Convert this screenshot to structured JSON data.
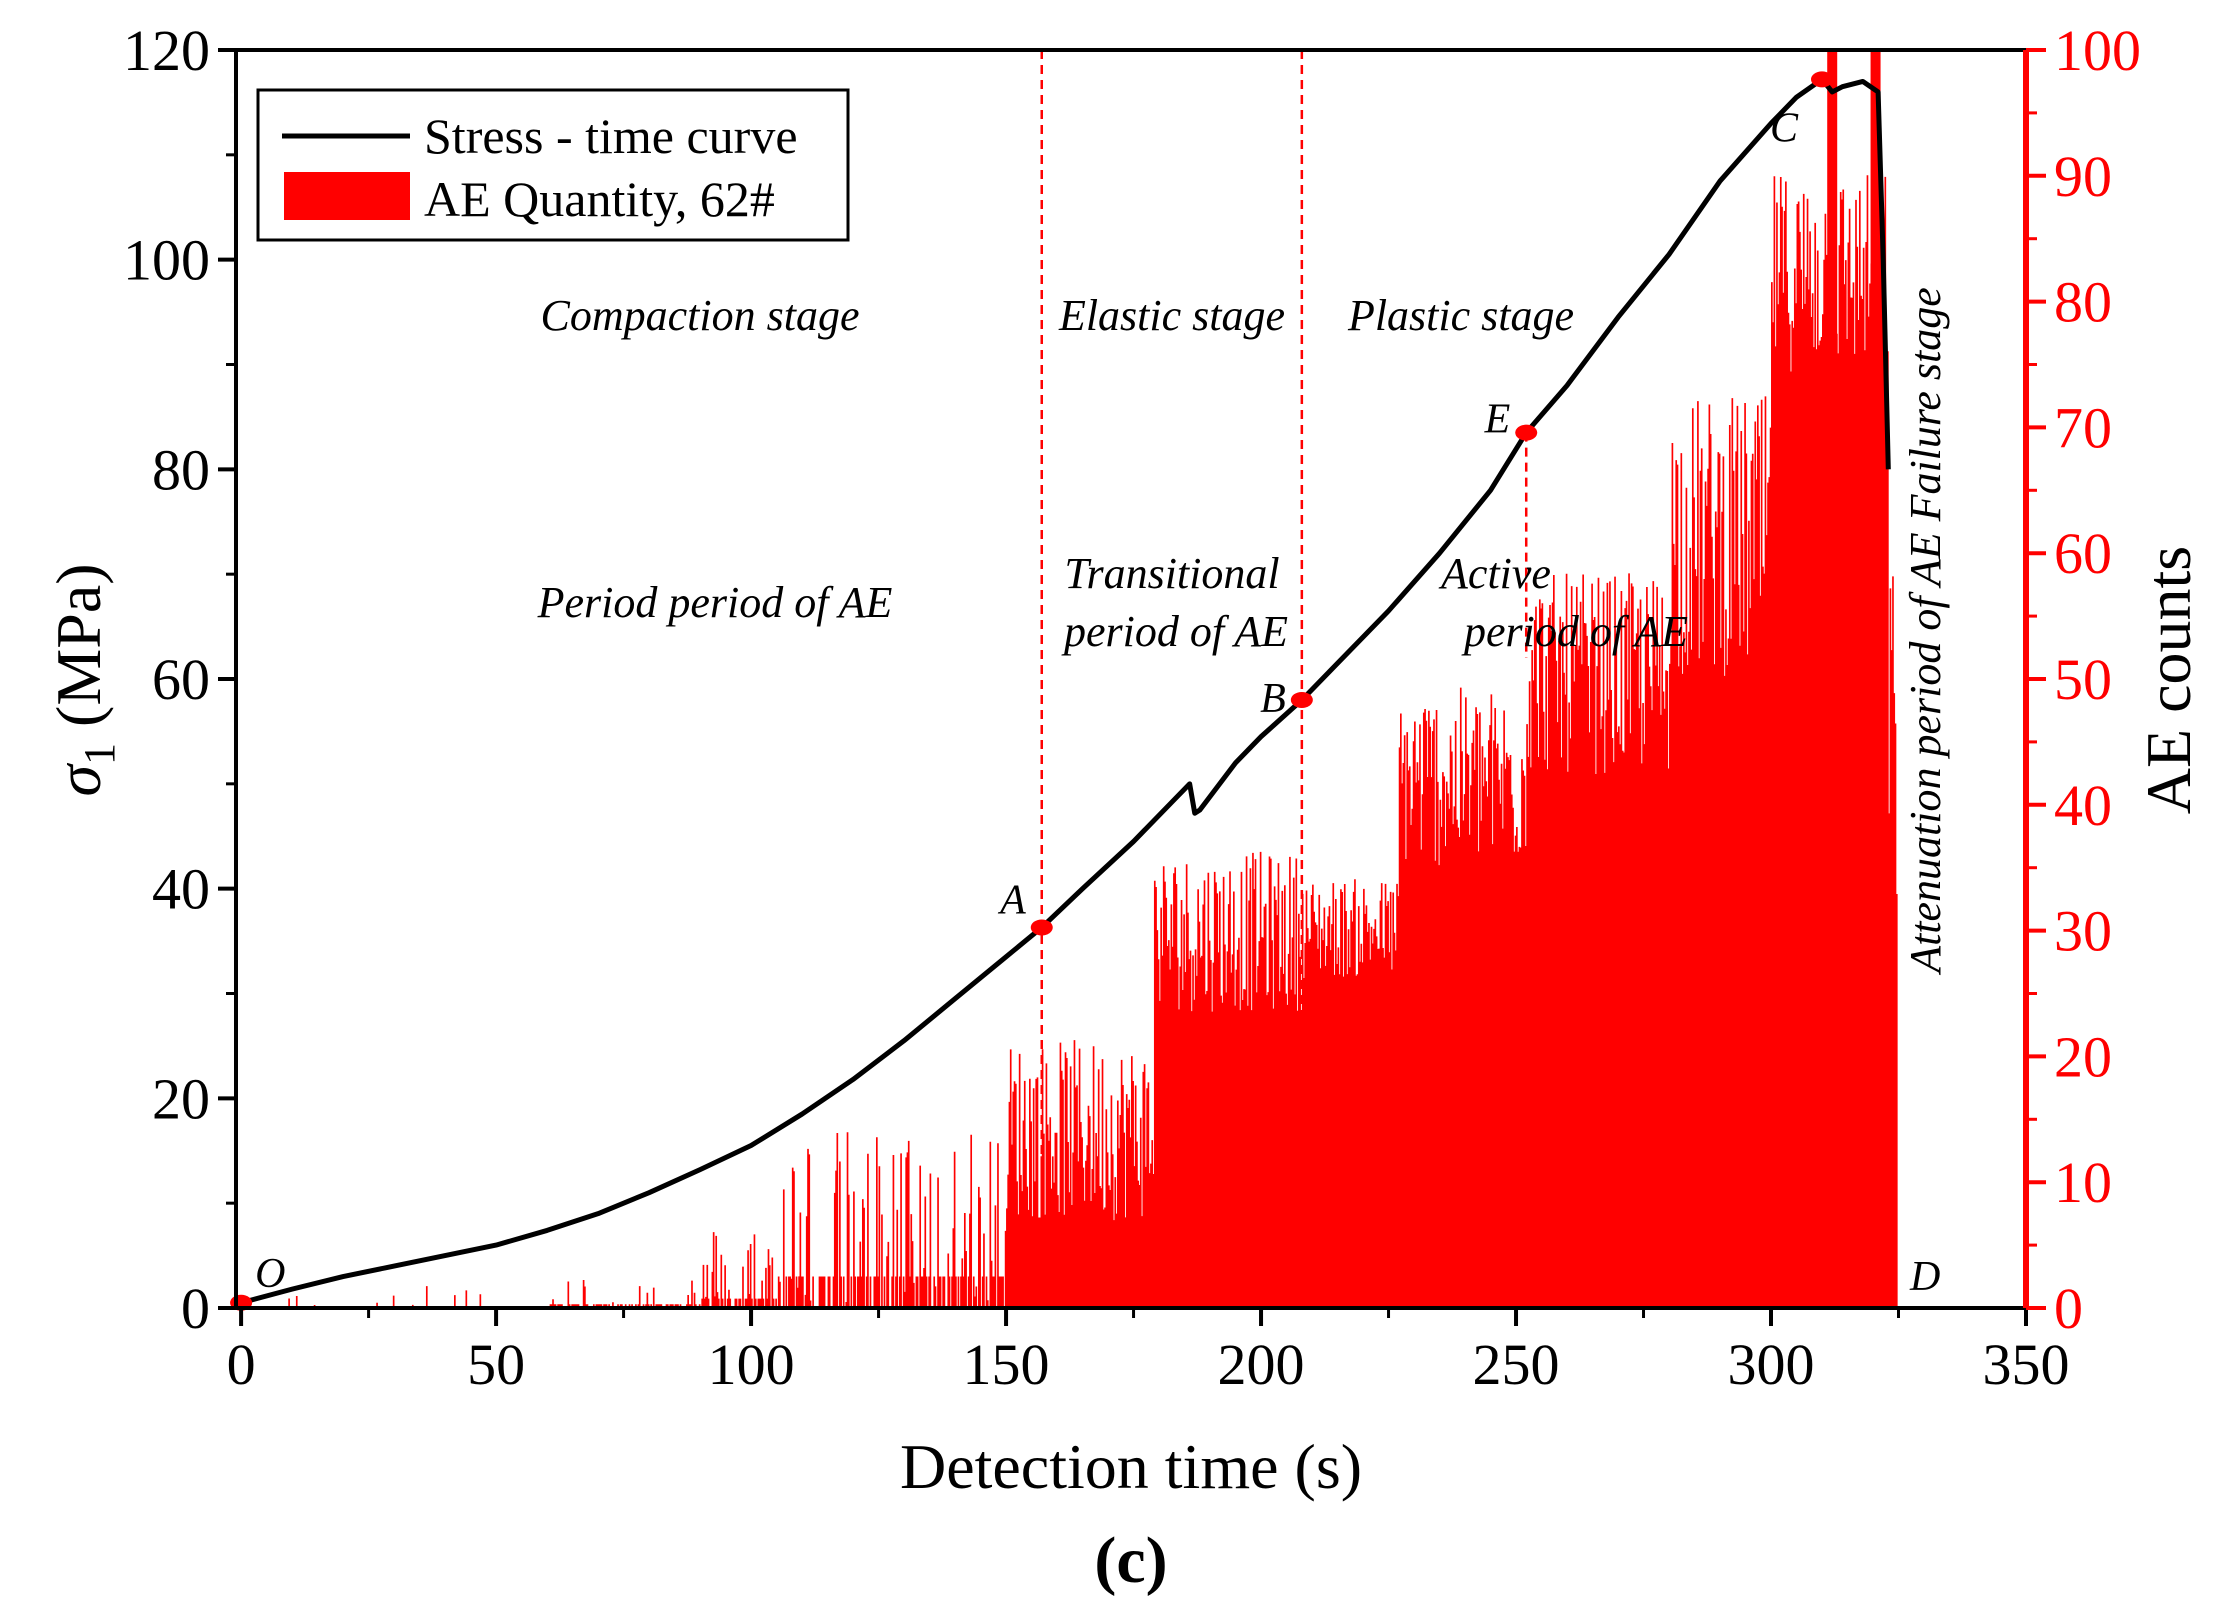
{
  "chart_data": {
    "type": "bar+line",
    "panel_label": "(c)",
    "xlabel": "Detection time (s)",
    "ylabel_left_symbol": "σ",
    "ylabel_left_subscript": "1",
    "ylabel_left_unit": " (MPa)",
    "ylabel_right": "AE counts",
    "xlim": [
      -1,
      350
    ],
    "ylim_left": [
      0,
      120
    ],
    "ylim_right": [
      0,
      100
    ],
    "x_ticks": [
      0,
      50,
      100,
      150,
      200,
      250,
      300,
      350
    ],
    "y_left_ticks": [
      0,
      20,
      40,
      60,
      80,
      100,
      120
    ],
    "y_right_ticks": [
      0,
      10,
      20,
      30,
      40,
      50,
      60,
      70,
      80,
      90,
      100
    ],
    "legend": [
      {
        "label": "Stress - time curve",
        "color": "#000000",
        "kind": "line"
      },
      {
        "label": "AE Quantity, 62#",
        "color": "#ff0000",
        "kind": "bar"
      }
    ],
    "colors": {
      "stress": "#000000",
      "ae": "#ff0000",
      "stage_line": "#ff0000"
    },
    "stress_series": {
      "name": "Stress - time curve",
      "x": [
        0,
        10,
        20,
        30,
        40,
        50,
        60,
        70,
        80,
        90,
        100,
        110,
        120,
        130,
        140,
        150,
        157,
        165,
        175,
        183,
        186,
        187,
        188,
        195,
        200,
        208,
        215,
        225,
        235,
        245,
        252,
        260,
        270,
        280,
        290,
        300,
        305,
        310,
        312,
        314,
        318,
        321,
        322,
        323
      ],
      "y": [
        0.5,
        1.8,
        3.0,
        4.0,
        5.0,
        6.0,
        7.4,
        9.0,
        11.0,
        13.2,
        15.5,
        18.5,
        21.8,
        25.5,
        29.5,
        33.5,
        36.3,
        40.0,
        44.5,
        48.5,
        50.0,
        47.2,
        47.5,
        52.0,
        54.5,
        58.0,
        61.5,
        66.5,
        72.0,
        78.0,
        83.5,
        88.0,
        94.5,
        100.5,
        107.5,
        113.0,
        115.5,
        117.2,
        116.0,
        116.5,
        117.0,
        116.0,
        100.0,
        80.0
      ]
    },
    "ae_series": {
      "name": "AE Quantity, 62#",
      "x_step": 0.25,
      "x_start": 0,
      "x_end": 324.5,
      "segments": [
        {
          "from": 0,
          "to": 60,
          "level": 0.3,
          "noise": 1.4,
          "spike_rate": 0.08
        },
        {
          "from": 60,
          "to": 90,
          "level": 0.6,
          "noise": 2.2,
          "spike_rate": 0.15
        },
        {
          "from": 90,
          "to": 105,
          "level": 1.5,
          "noise": 5,
          "spike_rate": 0.35
        },
        {
          "from": 105,
          "to": 150,
          "level": 5,
          "noise": 9,
          "spike_rate": 0.4
        },
        {
          "from": 150,
          "to": 179,
          "level": 12,
          "noise": 9,
          "spike_rate": 0.45
        },
        {
          "from": 179,
          "to": 208,
          "level": 28,
          "noise": 8,
          "spike_rate": 0.5
        },
        {
          "from": 208,
          "to": 227,
          "level": 29,
          "noise": 5,
          "spike_rate": 0.5
        },
        {
          "from": 227,
          "to": 252,
          "level": 40,
          "noise": 9,
          "spike_rate": 0.5
        },
        {
          "from": 252,
          "to": 280,
          "level": 48,
          "noise": 10,
          "spike_rate": 0.5
        },
        {
          "from": 280,
          "to": 300,
          "level": 58,
          "noise": 14,
          "spike_rate": 0.5
        },
        {
          "from": 300,
          "to": 323,
          "level": 80,
          "noise": 10,
          "spike_rate": 0.5
        },
        {
          "from": 323,
          "to": 324.5,
          "level": 40,
          "noise": 20,
          "spike_rate": 0.6
        }
      ],
      "peaks": [
        {
          "x": 312,
          "value": 100
        },
        {
          "x": 320.5,
          "value": 100
        }
      ]
    },
    "stage_lines": [
      {
        "x": 157,
        "y_stress": 36.3
      },
      {
        "x": 208,
        "y_stress": 58
      },
      {
        "x": 252,
        "y_stress": 83.5
      }
    ],
    "key_points": [
      {
        "label": "O",
        "x": 0,
        "y": 0.5,
        "marker": true
      },
      {
        "label": "A",
        "x": 157,
        "y": 36.3,
        "marker": true
      },
      {
        "label": "B",
        "x": 208,
        "y": 58,
        "marker": true
      },
      {
        "label": "E",
        "x": 252,
        "y": 83.5,
        "marker": true
      },
      {
        "label": "C",
        "x": 310,
        "y": 117.2,
        "marker": true
      },
      {
        "label": "D",
        "x": 324.5,
        "y": 0,
        "marker": false
      }
    ],
    "annotations": {
      "compaction": "Compaction stage",
      "elastic": "Elastic stage",
      "plastic": "Plastic stage",
      "period": "Period period of AE",
      "transitional_1": "Transitional",
      "transitional_2": "period of AE",
      "active_1": "Active",
      "active_2": "period of AE",
      "failure": "Attenuation period of AE Failure stage"
    }
  }
}
